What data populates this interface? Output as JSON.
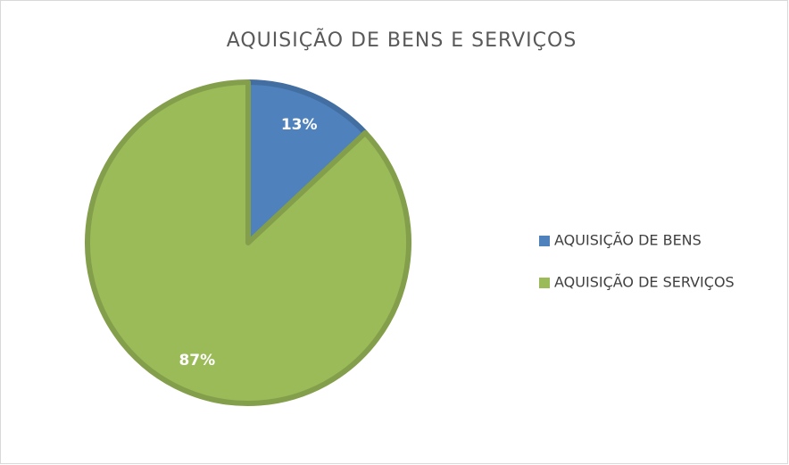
{
  "chart_data": {
    "type": "pie",
    "title": "AQUISIÇÃO DE BENS E SERVIÇOS",
    "categories": [
      "AQUISIÇÃO DE BENS",
      "AQUISIÇÃO DE SERVIÇOS"
    ],
    "values": [
      13,
      87
    ],
    "value_labels": [
      "13%",
      "87%"
    ],
    "colors": [
      "#4f81bd",
      "#9bbb59"
    ],
    "legend": "right"
  }
}
